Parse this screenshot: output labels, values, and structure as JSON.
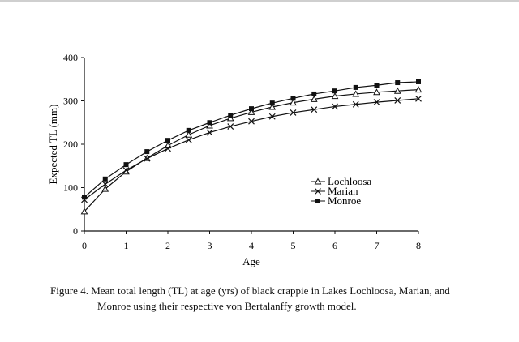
{
  "chart_data": {
    "type": "line",
    "xlabel": "Age",
    "ylabel": "Expected TL (mm)",
    "xlim": [
      0,
      8
    ],
    "ylim": [
      0,
      400
    ],
    "xticks": [
      0,
      1,
      2,
      3,
      4,
      5,
      6,
      7,
      8
    ],
    "yticks": [
      0,
      100,
      200,
      300,
      400
    ],
    "grid": false,
    "legend_position": "right",
    "x": [
      0,
      0.5,
      1,
      1.5,
      2,
      2.5,
      3,
      3.5,
      4,
      4.5,
      5,
      5.5,
      6,
      6.5,
      7,
      7.5,
      8
    ],
    "series": [
      {
        "name": "Lochloosa",
        "marker": "triangle-open",
        "values": [
          45,
          97,
          137,
          168,
          197,
          222,
          243,
          260,
          274,
          286,
          296,
          304,
          311,
          316,
          320,
          323,
          326
        ]
      },
      {
        "name": "Marian",
        "marker": "x",
        "values": [
          72,
          108,
          140,
          167,
          190,
          210,
          227,
          241,
          253,
          264,
          273,
          280,
          287,
          292,
          297,
          301,
          305
        ]
      },
      {
        "name": "Monroe",
        "marker": "square-filled",
        "values": [
          78,
          120,
          153,
          183,
          209,
          232,
          250,
          267,
          282,
          295,
          306,
          316,
          323,
          331,
          336,
          342,
          344
        ]
      }
    ]
  },
  "caption": {
    "line1": "Figure 4.  Mean total length (TL) at age (yrs) of black crappie in Lakes Lochloosa, Marian, and",
    "line2": "Monroe using their respective von Bertalanffy growth model."
  },
  "colors": {
    "ink": "#111111",
    "background": "#ffffff"
  }
}
